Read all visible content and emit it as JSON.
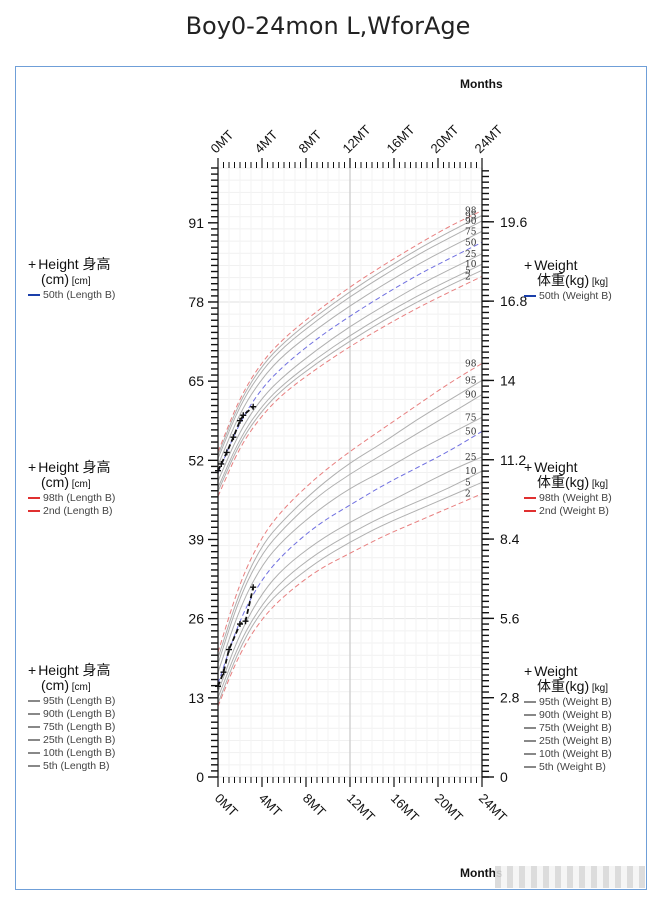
{
  "title": "Boy0-24mon L,WforAge",
  "months_label_top": "Months",
  "months_label_bottom": "Months",
  "legend_left": [
    {
      "header": "Height 身高",
      "unit": "(cm)",
      "unit_small": "[cm]",
      "items": [
        {
          "label": "50th (Length B)",
          "color": "#1a3faa",
          "dash": true
        }
      ]
    },
    {
      "header": "Height 身高",
      "unit": "(cm)",
      "unit_small": "[cm]",
      "items": [
        {
          "label": "98th (Length B)",
          "color": "#e03030",
          "dash": true
        },
        {
          "label": "2nd (Length B)",
          "color": "#e03030",
          "dash": true
        }
      ]
    },
    {
      "header": "Height 身高",
      "unit": "(cm)",
      "unit_small": "[cm]",
      "items": [
        {
          "label": "95th (Length B)",
          "color": "#888888",
          "dash": false
        },
        {
          "label": "90th (Length B)",
          "color": "#888888",
          "dash": false
        },
        {
          "label": "75th (Length B)",
          "color": "#888888",
          "dash": false
        },
        {
          "label": "25th (Length B)",
          "color": "#888888",
          "dash": false
        },
        {
          "label": "10th (Length B)",
          "color": "#888888",
          "dash": false
        },
        {
          "label": "5th (Length B)",
          "color": "#888888",
          "dash": false
        }
      ]
    }
  ],
  "legend_right": [
    {
      "header": "Weight",
      "unit": "体重(kg)",
      "unit_small": "[kg]",
      "items": [
        {
          "label": "50th (Weight B)",
          "color": "#1a3faa",
          "dash": true
        }
      ]
    },
    {
      "header": "Weight",
      "unit": "体重(kg)",
      "unit_small": "[kg]",
      "items": [
        {
          "label": "98th (Weight B)",
          "color": "#e03030",
          "dash": true
        },
        {
          "label": "2nd (Weight B)",
          "color": "#e03030",
          "dash": true
        }
      ]
    },
    {
      "header": "Weight",
      "unit": "体重(kg)",
      "unit_small": "[kg]",
      "items": [
        {
          "label": "95th (Weight B)",
          "color": "#888888",
          "dash": false
        },
        {
          "label": "90th (Weight B)",
          "color": "#888888",
          "dash": false
        },
        {
          "label": "75th (Weight B)",
          "color": "#888888",
          "dash": false
        },
        {
          "label": "25th (Weight B)",
          "color": "#888888",
          "dash": false
        },
        {
          "label": "10th (Weight B)",
          "color": "#888888",
          "dash": false
        },
        {
          "label": "5th (Weight B)",
          "color": "#888888",
          "dash": false
        }
      ]
    }
  ],
  "chart_data": {
    "type": "line",
    "x_ticks": [
      "0MT",
      "4MT",
      "8MT",
      "12MT",
      "16MT",
      "20MT",
      "24MT"
    ],
    "x_tick_values": [
      0,
      4,
      8,
      12,
      16,
      20,
      24
    ],
    "xlim": [
      0,
      24
    ],
    "left_axis": {
      "ticks": [
        0,
        13,
        26,
        39,
        52,
        65,
        78,
        91
      ],
      "ylim": [
        0,
        100
      ]
    },
    "right_axis": {
      "ticks": [
        0,
        2.8,
        5.6,
        8.4,
        11.2,
        14,
        16.8,
        19.6
      ],
      "ylim": [
        0,
        21.5
      ]
    },
    "colors": {
      "p2_98": "#e88080",
      "p50": "#7070e0",
      "other": "#b0b0b0",
      "patient": "#111111"
    },
    "length_curves": [
      {
        "name": "98",
        "months": [
          0,
          2,
          4,
          6,
          9,
          12,
          15,
          18,
          21,
          24
        ],
        "values": [
          53.4,
          62.4,
          68.2,
          72.1,
          76.5,
          80.5,
          84.0,
          87.3,
          90.4,
          93.0
        ]
      },
      {
        "name": "95",
        "months": [
          0,
          2,
          4,
          6,
          9,
          12,
          15,
          18,
          21,
          24
        ],
        "values": [
          52.9,
          61.8,
          67.6,
          71.4,
          75.8,
          79.7,
          83.2,
          86.5,
          89.5,
          92.2
        ]
      },
      {
        "name": "90",
        "months": [
          0,
          2,
          4,
          6,
          9,
          12,
          15,
          18,
          21,
          24
        ],
        "values": [
          52.3,
          61.1,
          66.8,
          70.7,
          75.0,
          78.9,
          82.3,
          85.6,
          88.5,
          91.3
        ]
      },
      {
        "name": "75",
        "months": [
          0,
          2,
          4,
          6,
          9,
          12,
          15,
          18,
          21,
          24
        ],
        "values": [
          51.2,
          59.9,
          65.5,
          69.4,
          73.6,
          77.4,
          80.8,
          84.0,
          86.9,
          89.6
        ]
      },
      {
        "name": "50",
        "months": [
          0,
          2,
          4,
          6,
          9,
          12,
          15,
          18,
          21,
          24
        ],
        "values": [
          49.9,
          58.4,
          63.9,
          67.6,
          72.0,
          75.7,
          79.1,
          82.3,
          85.1,
          87.8
        ]
      },
      {
        "name": "25",
        "months": [
          0,
          2,
          4,
          6,
          9,
          12,
          15,
          18,
          21,
          24
        ],
        "values": [
          48.6,
          56.9,
          62.3,
          65.9,
          70.2,
          74.0,
          77.3,
          80.5,
          83.3,
          85.9
        ]
      },
      {
        "name": "10",
        "months": [
          0,
          2,
          4,
          6,
          9,
          12,
          15,
          18,
          21,
          24
        ],
        "values": [
          47.5,
          55.7,
          61.0,
          64.6,
          68.8,
          72.5,
          75.8,
          78.9,
          81.6,
          84.2
        ]
      },
      {
        "name": "5",
        "months": [
          0,
          2,
          4,
          6,
          9,
          12,
          15,
          18,
          21,
          24
        ],
        "values": [
          46.9,
          55.0,
          60.2,
          63.9,
          68.0,
          71.6,
          74.9,
          77.9,
          80.7,
          83.2
        ]
      },
      {
        "name": "2",
        "months": [
          0,
          2,
          4,
          6,
          9,
          12,
          15,
          18,
          21,
          24
        ],
        "values": [
          46.1,
          54.3,
          59.4,
          63.1,
          67.1,
          70.7,
          73.9,
          76.9,
          79.6,
          82.2
        ]
      }
    ],
    "weight_curves": [
      {
        "name": "98",
        "months": [
          0,
          2,
          4,
          6,
          9,
          12,
          15,
          18,
          21,
          24
        ],
        "values": [
          4.4,
          6.9,
          8.5,
          9.5,
          10.6,
          11.5,
          12.3,
          13.1,
          13.9,
          14.6
        ]
      },
      {
        "name": "95",
        "months": [
          0,
          2,
          4,
          6,
          9,
          12,
          15,
          18,
          21,
          24
        ],
        "values": [
          4.2,
          6.6,
          8.2,
          9.1,
          10.2,
          11.1,
          11.8,
          12.6,
          13.3,
          14.0
        ]
      },
      {
        "name": "90",
        "months": [
          0,
          2,
          4,
          6,
          9,
          12,
          15,
          18,
          21,
          24
        ],
        "values": [
          4.0,
          6.4,
          7.9,
          8.8,
          9.9,
          10.7,
          11.4,
          12.1,
          12.8,
          13.5
        ]
      },
      {
        "name": "75",
        "months": [
          0,
          2,
          4,
          6,
          9,
          12,
          15,
          18,
          21,
          24
        ],
        "values": [
          3.7,
          6.0,
          7.5,
          8.4,
          9.4,
          10.2,
          10.8,
          11.5,
          12.1,
          12.7
        ]
      },
      {
        "name": "50",
        "months": [
          0,
          2,
          4,
          6,
          9,
          12,
          15,
          18,
          21,
          24
        ],
        "values": [
          3.3,
          5.6,
          7.0,
          7.9,
          8.9,
          9.6,
          10.3,
          10.9,
          11.5,
          12.2
        ]
      },
      {
        "name": "25",
        "months": [
          0,
          2,
          4,
          6,
          9,
          12,
          15,
          18,
          21,
          24
        ],
        "values": [
          3.0,
          5.1,
          6.5,
          7.4,
          8.3,
          9.0,
          9.6,
          10.2,
          10.8,
          11.3
        ]
      },
      {
        "name": "10",
        "months": [
          0,
          2,
          4,
          6,
          9,
          12,
          15,
          18,
          21,
          24
        ],
        "values": [
          2.8,
          4.8,
          6.1,
          7.0,
          7.9,
          8.6,
          9.2,
          9.7,
          10.2,
          10.8
        ]
      },
      {
        "name": "5",
        "months": [
          0,
          2,
          4,
          6,
          9,
          12,
          15,
          18,
          21,
          24
        ],
        "values": [
          2.6,
          4.6,
          5.9,
          6.7,
          7.6,
          8.3,
          8.9,
          9.4,
          9.9,
          10.4
        ]
      },
      {
        "name": "2",
        "months": [
          0,
          2,
          4,
          6,
          9,
          12,
          15,
          18,
          21,
          24
        ],
        "values": [
          2.5,
          4.4,
          5.6,
          6.4,
          7.3,
          7.9,
          8.5,
          9.0,
          9.5,
          10.0
        ]
      }
    ],
    "patient_length": {
      "months": [
        0,
        0.3,
        0.8,
        1.4,
        2.0,
        2.3,
        3.2
      ],
      "values": [
        50.3,
        51.4,
        53.3,
        55.8,
        58.5,
        59.4,
        60.8
      ]
    },
    "patient_weight": {
      "months": [
        0,
        0.5,
        1.0,
        2.0,
        2.5,
        3.2
      ],
      "values": [
        3.2,
        3.7,
        4.5,
        5.4,
        5.5,
        6.7
      ]
    }
  }
}
